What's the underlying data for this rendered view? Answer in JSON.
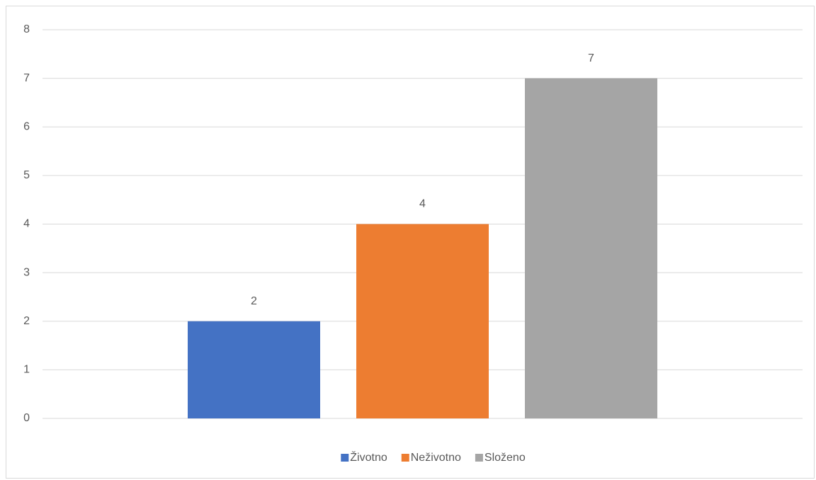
{
  "chart_data": {
    "type": "bar",
    "categories": [
      null
    ],
    "series": [
      {
        "name": "Životno",
        "color": "#4472c4",
        "values": [
          2
        ]
      },
      {
        "name": "Neživotno",
        "color": "#ed7d31",
        "values": [
          4
        ]
      },
      {
        "name": "Složeno",
        "color": "#a5a5a5",
        "values": [
          7
        ]
      }
    ],
    "ylim": [
      0,
      8
    ],
    "yticks": [
      0,
      1,
      2,
      3,
      4,
      5,
      6,
      7,
      8
    ],
    "grid": true,
    "legend": "bottom",
    "data_labels": true
  }
}
